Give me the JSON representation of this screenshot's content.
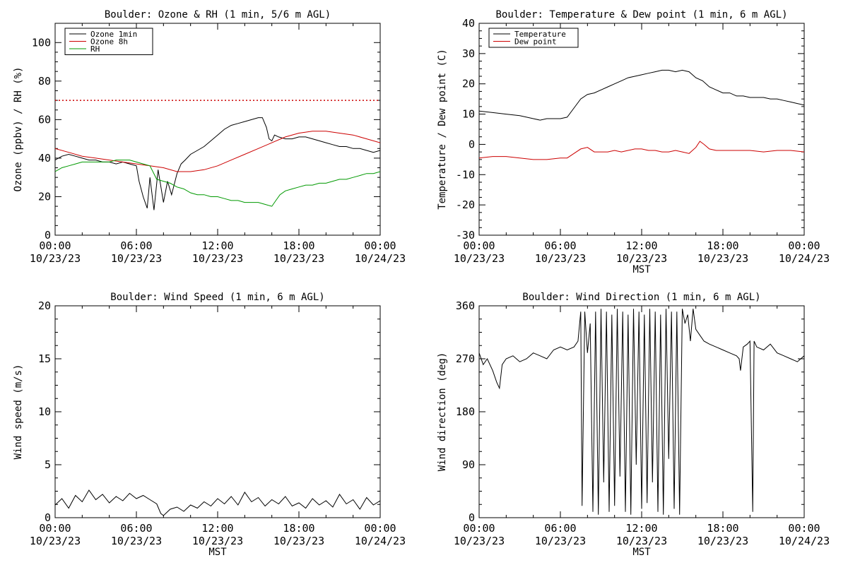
{
  "chart_data": [
    {
      "type": "line",
      "title": "Boulder: Ozone & RH (1 min, 5/6 m AGL)",
      "ylabel": "Ozone (ppbv) / RH (%)",
      "xlabel": "",
      "xlim": [
        0,
        24
      ],
      "ylim": [
        0,
        110
      ],
      "yticks": [
        0,
        20,
        40,
        60,
        80,
        100
      ],
      "xtick_time": [
        "00:00",
        "06:00",
        "12:00",
        "18:00",
        "00:00"
      ],
      "xtick_date": [
        "10/23/23",
        "10/23/23",
        "10/23/23",
        "10/23/23",
        "10/24/23"
      ],
      "legend": "top-left",
      "reference_line": {
        "y": 70,
        "color": "#cc0000",
        "style": "dotted"
      },
      "series": [
        {
          "name": "Ozone 1min",
          "color": "#000000",
          "x": [
            0,
            0.5,
            1,
            1.5,
            2,
            2.5,
            3,
            3.5,
            4,
            4.5,
            5,
            5.5,
            6,
            6.2,
            6.5,
            6.8,
            7,
            7.3,
            7.6,
            8,
            8.3,
            8.6,
            9,
            9.3,
            9.6,
            10,
            10.5,
            11,
            11.5,
            12,
            12.5,
            13,
            13.5,
            14,
            14.5,
            15,
            15.3,
            15.6,
            15.8,
            16,
            16.2,
            16.5,
            17,
            17.5,
            18,
            18.5,
            19,
            19.5,
            20,
            20.5,
            21,
            21.5,
            22,
            22.5,
            23,
            23.5,
            24
          ],
          "y": [
            39,
            41,
            42,
            41,
            40,
            39,
            39,
            38,
            38,
            37,
            38,
            37,
            36,
            28,
            20,
            14,
            30,
            13,
            34,
            17,
            28,
            21,
            32,
            37,
            39,
            42,
            44,
            46,
            49,
            52,
            55,
            57,
            58,
            59,
            60,
            61,
            61,
            56,
            50,
            49,
            52,
            51,
            50,
            50,
            51,
            51,
            50,
            49,
            48,
            47,
            46,
            46,
            45,
            45,
            44,
            43,
            44
          ]
        },
        {
          "name": "Ozone 8h",
          "color": "#cc0000",
          "x": [
            0,
            1,
            2,
            3,
            4,
            5,
            6,
            7,
            8,
            9,
            10,
            11,
            12,
            13,
            14,
            15,
            16,
            17,
            18,
            19,
            20,
            21,
            22,
            23,
            24
          ],
          "y": [
            45,
            43,
            41,
            40,
            39,
            38,
            37,
            36,
            35,
            33,
            33,
            34,
            36,
            39,
            42,
            45,
            48,
            51,
            53,
            54,
            54,
            53,
            52,
            50,
            48
          ]
        },
        {
          "name": "RH",
          "color": "#009900",
          "x": [
            0,
            0.5,
            1,
            1.5,
            2,
            2.5,
            3,
            3.5,
            4,
            4.5,
            5,
            5.5,
            6,
            6.5,
            7,
            7.5,
            8,
            8.5,
            9,
            9.5,
            10,
            10.5,
            11,
            11.5,
            12,
            12.5,
            13,
            13.5,
            14,
            14.5,
            15,
            15.5,
            16,
            16.3,
            16.6,
            17,
            17.5,
            18,
            18.5,
            19,
            19.5,
            20,
            20.5,
            21,
            21.5,
            22,
            22.5,
            23,
            23.5,
            24
          ],
          "y": [
            33,
            35,
            36,
            37,
            38,
            38,
            38,
            38,
            38,
            39,
            39,
            39,
            38,
            37,
            36,
            29,
            28,
            27,
            25,
            24,
            22,
            21,
            21,
            20,
            20,
            19,
            18,
            18,
            17,
            17,
            17,
            16,
            15,
            18,
            21,
            23,
            24,
            25,
            26,
            26,
            27,
            27,
            28,
            29,
            29,
            30,
            31,
            32,
            32,
            33
          ]
        }
      ]
    },
    {
      "type": "line",
      "title": "Boulder: Temperature & Dew point (1 min, 6 m AGL)",
      "ylabel": "Temperature / Dew point (C)",
      "xlabel": "MST",
      "xlim": [
        0,
        24
      ],
      "ylim": [
        -30,
        40
      ],
      "yticks": [
        -30,
        -20,
        -10,
        0,
        10,
        20,
        30,
        40
      ],
      "xtick_time": [
        "00:00",
        "06:00",
        "12:00",
        "18:00",
        "00:00"
      ],
      "xtick_date": [
        "10/23/23",
        "10/23/23",
        "10/23/23",
        "10/23/23",
        "10/24/23"
      ],
      "legend": "top-left",
      "series": [
        {
          "name": "Temperature",
          "color": "#000000",
          "x": [
            0,
            1,
            2,
            3,
            4,
            4.5,
            5,
            5.5,
            6,
            6.5,
            7,
            7.5,
            8,
            8.5,
            9,
            9.5,
            10,
            10.5,
            11,
            11.5,
            12,
            12.5,
            13,
            13.5,
            14,
            14.5,
            15,
            15.5,
            16,
            16.5,
            17,
            17.5,
            18,
            18.5,
            19,
            19.5,
            20,
            20.5,
            21,
            21.5,
            22,
            22.5,
            23,
            23.5,
            24
          ],
          "y": [
            11,
            10.5,
            10,
            9.5,
            8.5,
            8,
            8.5,
            8.5,
            8.5,
            9,
            12,
            15,
            16.5,
            17,
            18,
            19,
            20,
            21,
            22,
            22.5,
            23,
            23.5,
            24,
            24.5,
            24.5,
            24,
            24.5,
            24,
            22,
            21,
            19,
            18,
            17,
            17,
            16,
            16,
            15.5,
            15.5,
            15.5,
            15,
            15,
            14.5,
            14,
            13.5,
            13
          ]
        },
        {
          "name": "Dew point",
          "color": "#cc0000",
          "x": [
            0,
            1,
            2,
            3,
            4,
            5,
            6,
            6.5,
            7,
            7.5,
            8,
            8.5,
            9,
            9.5,
            10,
            10.5,
            11,
            11.5,
            12,
            12.5,
            13,
            13.5,
            14,
            14.5,
            15,
            15.5,
            16,
            16.3,
            16.6,
            17,
            17.5,
            18,
            19,
            20,
            21,
            22,
            23,
            24
          ],
          "y": [
            -4.5,
            -4,
            -4,
            -4.5,
            -5,
            -5,
            -4.5,
            -4.5,
            -3,
            -1.5,
            -1,
            -2.5,
            -2.5,
            -2.5,
            -2,
            -2.5,
            -2,
            -1.5,
            -1.5,
            -2,
            -2,
            -2.5,
            -2.5,
            -2,
            -2.5,
            -3,
            -1,
            1,
            0,
            -1.5,
            -2,
            -2,
            -2,
            -2,
            -2.5,
            -2,
            -2,
            -2.5
          ]
        }
      ]
    },
    {
      "type": "line",
      "title": "Boulder: Wind Speed (1 min, 6 m AGL)",
      "ylabel": "Wind speed (m/s)",
      "xlabel": "MST",
      "xlim": [
        0,
        24
      ],
      "ylim": [
        0,
        20
      ],
      "yticks": [
        0,
        5,
        10,
        15,
        20
      ],
      "xtick_time": [
        "00:00",
        "06:00",
        "12:00",
        "18:00",
        "00:00"
      ],
      "xtick_date": [
        "10/23/23",
        "10/23/23",
        "10/23/23",
        "10/23/23",
        "10/24/23"
      ],
      "series": [
        {
          "name": "",
          "color": "#000000",
          "x": [
            0,
            0.5,
            1,
            1.5,
            2,
            2.5,
            3,
            3.5,
            4,
            4.5,
            5,
            5.5,
            6,
            6.5,
            7,
            7.5,
            7.8,
            8,
            8.5,
            9,
            9.5,
            10,
            10.5,
            11,
            11.5,
            12,
            12.5,
            13,
            13.5,
            14,
            14.5,
            15,
            15.5,
            16,
            16.5,
            17,
            17.5,
            18,
            18.5,
            19,
            19.5,
            20,
            20.5,
            21,
            21.5,
            22,
            22.5,
            23,
            23.5,
            24
          ],
          "y": [
            1.2,
            1.8,
            0.9,
            2.1,
            1.5,
            2.6,
            1.7,
            2.2,
            1.4,
            2.0,
            1.6,
            2.3,
            1.8,
            2.1,
            1.7,
            1.3,
            0.4,
            0.2,
            0.8,
            1.0,
            0.6,
            1.2,
            0.9,
            1.5,
            1.1,
            1.8,
            1.3,
            2.0,
            1.2,
            2.4,
            1.5,
            1.9,
            1.1,
            1.7,
            1.3,
            2.0,
            1.1,
            1.4,
            0.9,
            1.8,
            1.2,
            1.6,
            1.0,
            2.2,
            1.3,
            1.7,
            0.8,
            1.9,
            1.2,
            1.6
          ]
        }
      ]
    },
    {
      "type": "line",
      "title": "Boulder: Wind Direction (1 min, 6 m AGL)",
      "ylabel": "Wind direction (deg)",
      "xlabel": "MST",
      "xlim": [
        0,
        24
      ],
      "ylim": [
        0,
        360
      ],
      "yticks": [
        0,
        90,
        180,
        270,
        360
      ],
      "xtick_time": [
        "00:00",
        "06:00",
        "12:00",
        "18:00",
        "00:00"
      ],
      "xtick_date": [
        "10/23/23",
        "10/23/23",
        "10/23/23",
        "10/23/23",
        "10/24/23"
      ],
      "series": [
        {
          "name": "",
          "color": "#000000",
          "x": [
            0,
            0.3,
            0.6,
            1,
            1.3,
            1.5,
            1.7,
            2,
            2.5,
            3,
            3.5,
            4,
            4.5,
            5,
            5.5,
            6,
            6.5,
            7,
            7.3,
            7.5,
            7.6,
            7.8,
            8,
            8.2,
            8.4,
            8.6,
            8.8,
            9,
            9.2,
            9.4,
            9.6,
            9.8,
            10,
            10.2,
            10.4,
            10.6,
            10.8,
            11,
            11.2,
            11.4,
            11.6,
            11.8,
            12,
            12.2,
            12.4,
            12.6,
            12.8,
            13,
            13.2,
            13.4,
            13.6,
            13.8,
            14,
            14.2,
            14.4,
            14.6,
            14.8,
            15,
            15.2,
            15.4,
            15.6,
            15.8,
            16,
            16.3,
            16.6,
            17,
            17.5,
            18,
            18.5,
            19,
            19.2,
            19.3,
            19.5,
            19.8,
            20,
            20.2,
            20.3,
            20.5,
            21,
            21.5,
            22,
            22.5,
            23,
            23.5,
            24
          ],
          "y": [
            280,
            260,
            270,
            250,
            230,
            220,
            260,
            270,
            275,
            265,
            270,
            280,
            275,
            270,
            285,
            290,
            285,
            290,
            300,
            350,
            20,
            350,
            280,
            330,
            10,
            350,
            5,
            355,
            60,
            350,
            10,
            345,
            20,
            355,
            70,
            350,
            10,
            345,
            5,
            355,
            90,
            350,
            15,
            345,
            25,
            355,
            60,
            350,
            10,
            345,
            5,
            355,
            100,
            350,
            15,
            350,
            5,
            355,
            330,
            345,
            300,
            355,
            320,
            310,
            300,
            295,
            290,
            285,
            280,
            275,
            270,
            250,
            290,
            295,
            300,
            10,
            300,
            290,
            285,
            295,
            280,
            275,
            270,
            265,
            275
          ]
        }
      ]
    }
  ]
}
